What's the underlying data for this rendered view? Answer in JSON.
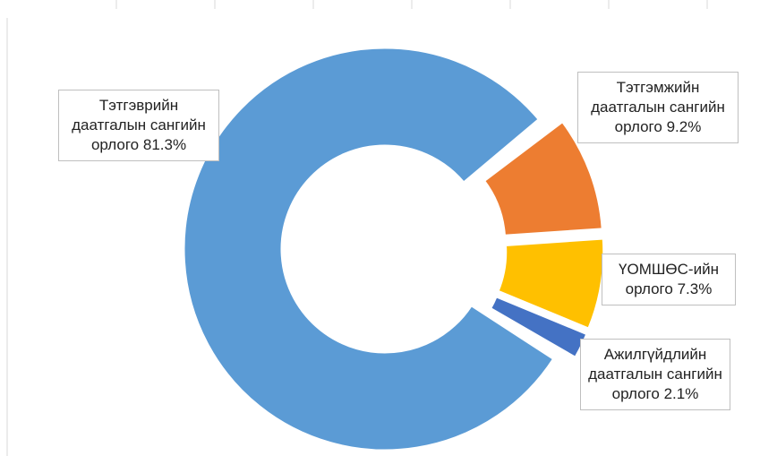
{
  "chart_data": {
    "type": "donut",
    "categories": [
      "Тэтгэврийн даатгалын сангийн орлого",
      "Тэтгэмжийн даатгалын сангийн орлого",
      "ҮОМШӨС-ийн орлого",
      "Ажилгүйдлийн даатгалын сангийн орлого"
    ],
    "values": [
      81.3,
      9.2,
      7.3,
      2.1
    ],
    "value_labels": [
      "81.3%",
      "9.2%",
      "7.3%",
      "2.1%"
    ],
    "colors": [
      "#5b9bd5",
      "#ed7d31",
      "#ffc000",
      "#4472c4"
    ]
  }
}
